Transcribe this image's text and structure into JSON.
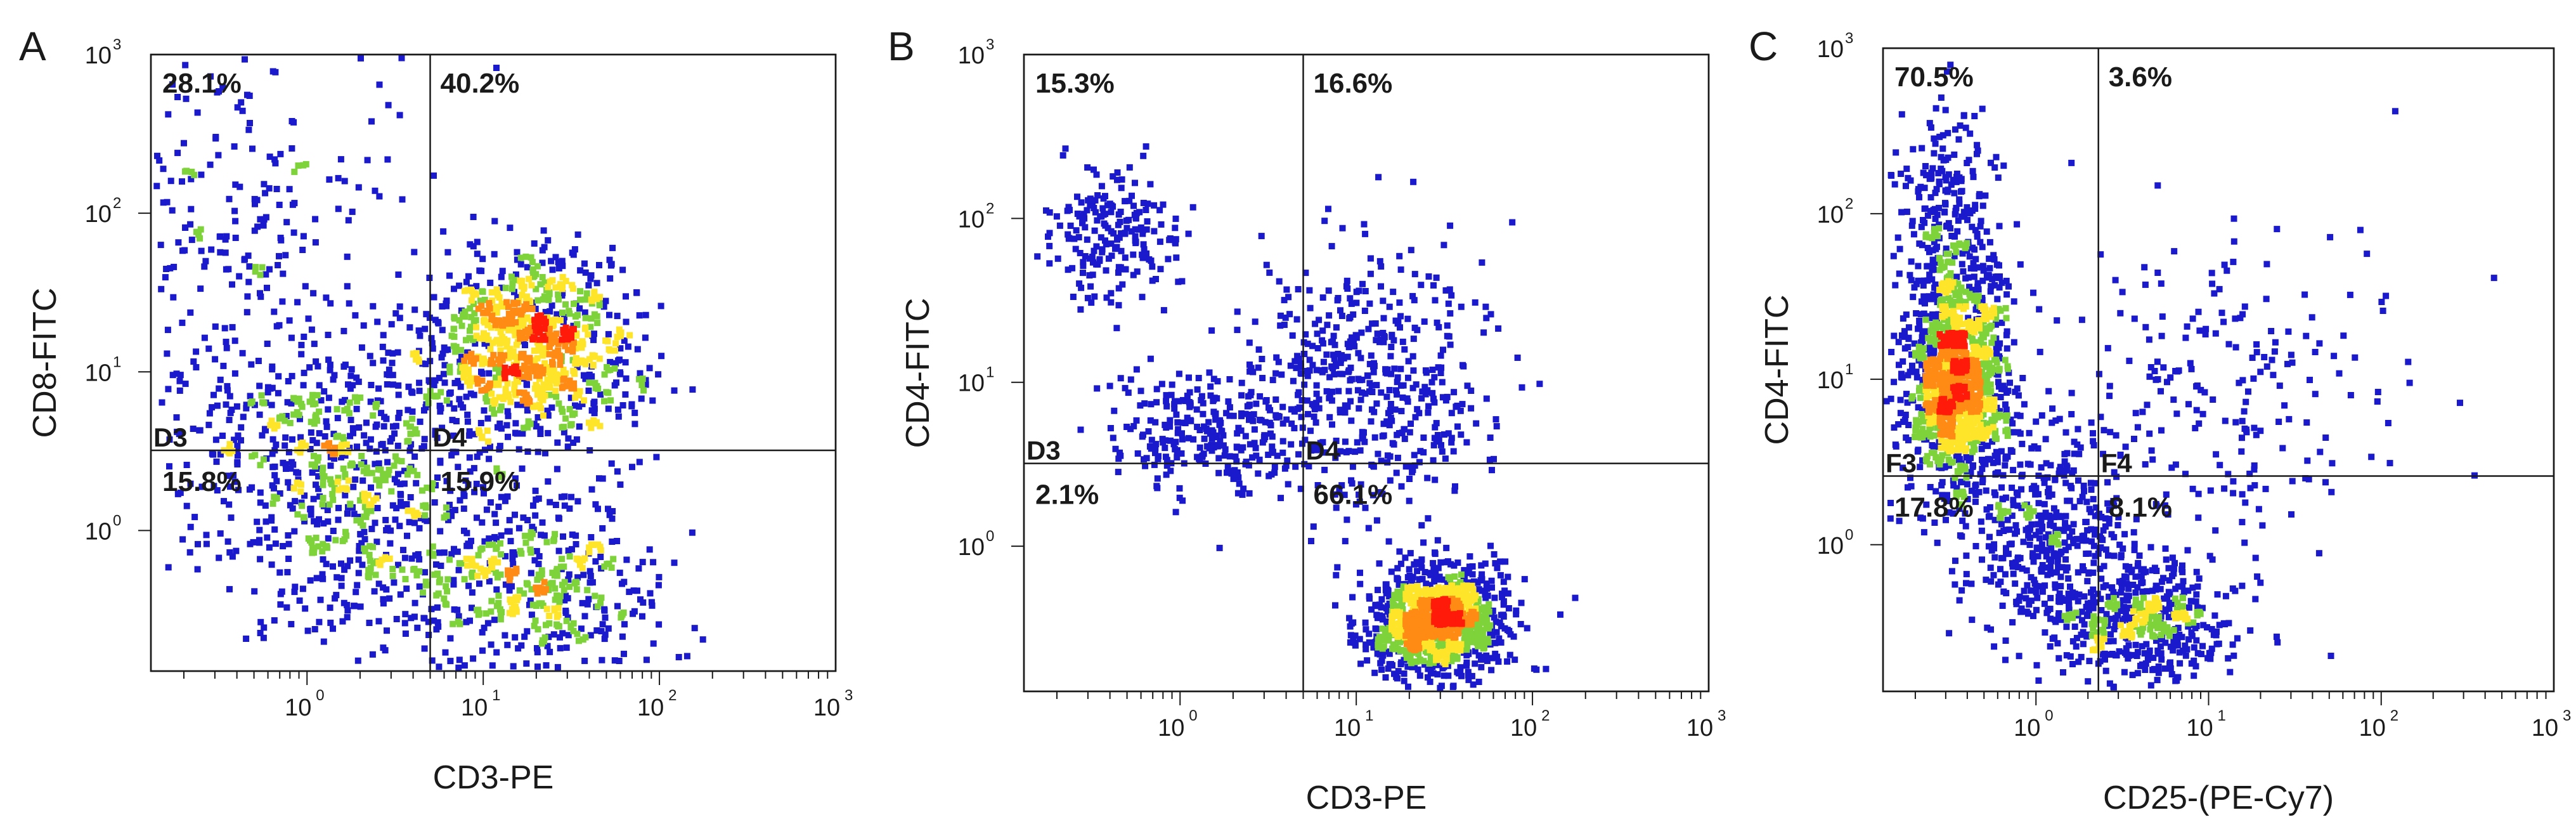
{
  "colors": {
    "density_low": "#1a1acc",
    "density_mid": "#7ed23a",
    "density_midhigh": "#ffe52a",
    "density_high": "#ff8a14",
    "density_peak": "#ff1a0a",
    "axis": "#1a1a1a"
  },
  "chart_data": [
    {
      "type": "scatter",
      "panel": "A",
      "xlabel": "CD3-PE",
      "ylabel": "CD8-FITC",
      "scale": "log",
      "xlim": [
        0.13,
        1000
      ],
      "ylim": [
        0.13,
        1000
      ],
      "x_ticks": [
        "10",
        "10",
        "10",
        "10"
      ],
      "x_tick_exps": [
        "0",
        "1",
        "2",
        "3"
      ],
      "y_ticks": [
        "10",
        "10",
        "10",
        "10"
      ],
      "y_tick_exps": [
        "0",
        "1",
        "2",
        "3"
      ],
      "quadrant_gate": {
        "x": 5,
        "y": 3.2
      },
      "gate_labels": {
        "left": "D3",
        "right": "D4"
      },
      "quadrants": {
        "upper_left": "28.1%",
        "upper_right": "40.2%",
        "lower_left": "15.8%",
        "lower_right": "15.9%"
      },
      "populations": [
        {
          "cx": 0.35,
          "cy": 100,
          "sx": 0.5,
          "sy": 0.55,
          "n": 260
        },
        {
          "cx": 1.5,
          "cy": 3.5,
          "sx": 0.5,
          "sy": 0.38,
          "n": 600
        },
        {
          "cx": 18,
          "cy": 14,
          "sx": 0.3,
          "sy": 0.3,
          "n": 900
        },
        {
          "cx": 25,
          "cy": 0.45,
          "sx": 0.3,
          "sy": 0.3,
          "n": 380
        },
        {
          "cx": 2.5,
          "cy": 0.6,
          "sx": 0.45,
          "sy": 0.32,
          "n": 300
        }
      ]
    },
    {
      "type": "scatter",
      "panel": "B",
      "xlabel": "CD3-PE",
      "ylabel": "CD4-FITC",
      "scale": "log",
      "xlim": [
        0.13,
        1000
      ],
      "ylim": [
        0.13,
        1000
      ],
      "x_ticks": [
        "10",
        "10",
        "10",
        "10"
      ],
      "x_tick_exps": [
        "0",
        "1",
        "2",
        "3"
      ],
      "y_ticks": [
        "10",
        "10",
        "10",
        "10"
      ],
      "y_tick_exps": [
        "0",
        "1",
        "2",
        "3"
      ],
      "quadrant_gate": {
        "x": 5,
        "y": 3.2
      },
      "gate_labels": {
        "left": "D3",
        "right": "D4"
      },
      "quadrants": {
        "upper_left": "15.3%",
        "upper_right": "16.6%",
        "lower_left": "2.1%",
        "lower_right": "66.1%"
      },
      "populations": [
        {
          "cx": 0.4,
          "cy": 80,
          "sx": 0.18,
          "sy": 0.2,
          "n": 200
        },
        {
          "cx": 1.5,
          "cy": 5,
          "sx": 0.3,
          "sy": 0.22,
          "n": 280
        },
        {
          "cx": 12,
          "cy": 10,
          "sx": 0.35,
          "sy": 0.4,
          "n": 480
        },
        {
          "cx": 30,
          "cy": 0.35,
          "sx": 0.2,
          "sy": 0.17,
          "n": 1100
        }
      ]
    },
    {
      "type": "scatter",
      "panel": "C",
      "xlabel": "CD25-(PE-Cy7)",
      "ylabel": "CD4-FITC",
      "scale": "log",
      "xlim": [
        0.13,
        1000
      ],
      "ylim": [
        0.13,
        1000
      ],
      "x_ticks": [
        "10",
        "10",
        "10",
        "10"
      ],
      "x_tick_exps": [
        "0",
        "1",
        "2",
        "3"
      ],
      "y_ticks": [
        "10",
        "10",
        "10",
        "10"
      ],
      "y_tick_exps": [
        "0",
        "1",
        "2",
        "3"
      ],
      "quadrant_gate": {
        "x": 2.3,
        "y": 2.6
      },
      "gate_labels": {
        "left": "F3",
        "right": "F4"
      },
      "quadrants": {
        "upper_left": "70.5%",
        "upper_right": "3.6%",
        "lower_left": "17.8%",
        "lower_right": "8.1%"
      },
      "populations": [
        {
          "cx": 0.35,
          "cy": 10,
          "sx": 0.15,
          "sy": 0.35,
          "n": 1300
        },
        {
          "cx": 0.3,
          "cy": 120,
          "sx": 0.15,
          "sy": 0.3,
          "n": 200
        },
        {
          "cx": 1.2,
          "cy": 1.2,
          "sx": 0.25,
          "sy": 0.3,
          "n": 400
        },
        {
          "cx": 4,
          "cy": 0.35,
          "sx": 0.3,
          "sy": 0.2,
          "n": 500
        },
        {
          "cx": 10,
          "cy": 8,
          "sx": 0.5,
          "sy": 0.5,
          "n": 220
        }
      ]
    }
  ]
}
